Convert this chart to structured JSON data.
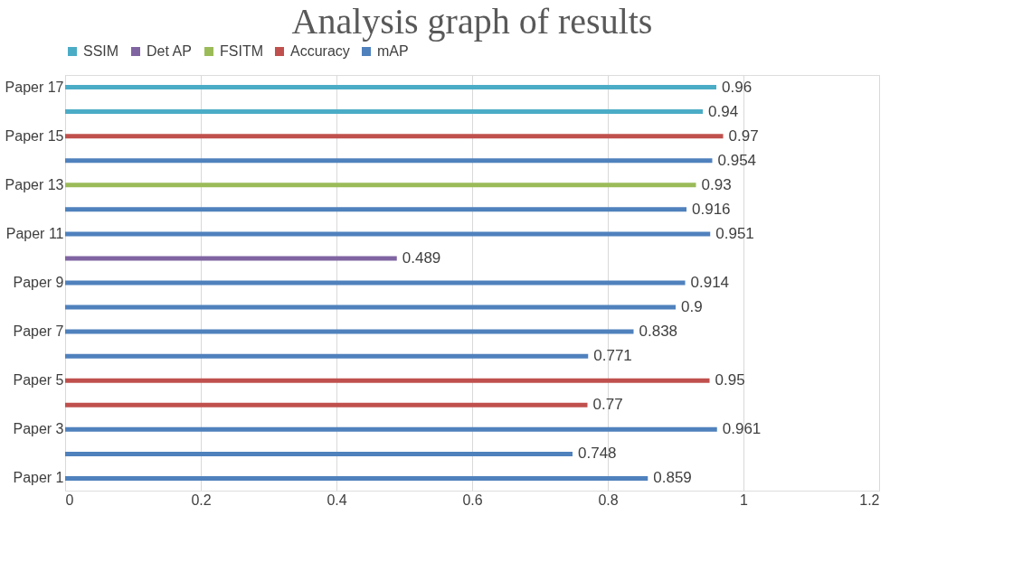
{
  "chart_data": {
    "type": "bar",
    "orientation": "horizontal",
    "title": "Analysis graph of results",
    "categories": [
      "Paper 17",
      null,
      "Paper 15",
      null,
      "Paper 13",
      null,
      "Paper 11",
      null,
      "Paper 9",
      null,
      "Paper 7",
      null,
      "Paper 5",
      null,
      "Paper 3",
      null,
      "Paper 1"
    ],
    "series": [
      {
        "name": "SSIM",
        "color": "#4bacc6",
        "values": [
          0.96,
          0.94,
          null,
          null,
          null,
          null,
          null,
          null,
          null,
          null,
          null,
          null,
          null,
          null,
          null,
          null,
          null
        ]
      },
      {
        "name": "Det AP",
        "color": "#8064a2",
        "values": [
          null,
          null,
          null,
          null,
          null,
          null,
          null,
          0.489,
          null,
          null,
          null,
          null,
          null,
          null,
          null,
          null,
          null
        ]
      },
      {
        "name": "FSITM",
        "color": "#9bbb59",
        "values": [
          null,
          null,
          null,
          null,
          0.93,
          null,
          null,
          null,
          null,
          null,
          null,
          null,
          null,
          null,
          null,
          null,
          null
        ]
      },
      {
        "name": "Accuracy",
        "color": "#c0504d",
        "values": [
          null,
          null,
          0.97,
          null,
          null,
          null,
          null,
          null,
          null,
          null,
          null,
          null,
          0.95,
          0.77,
          null,
          null,
          null
        ]
      },
      {
        "name": "mAP",
        "color": "#4f81bd",
        "values": [
          null,
          null,
          null,
          0.954,
          null,
          0.916,
          0.951,
          null,
          0.914,
          0.9,
          0.838,
          0.771,
          null,
          null,
          0.961,
          0.748,
          0.859
        ]
      }
    ],
    "xlim": [
      0,
      1.2
    ],
    "xticks": [
      0,
      0.2,
      0.4,
      0.6,
      0.8,
      1,
      1.2
    ],
    "grid": "x",
    "legend": "top",
    "data_labels": true
  }
}
